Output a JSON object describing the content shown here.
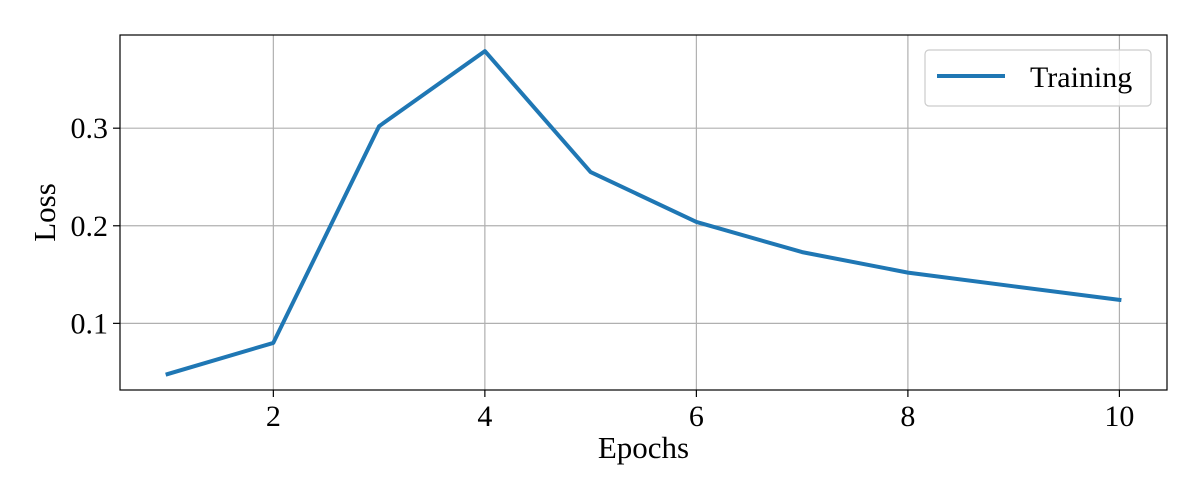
{
  "chart_data": {
    "type": "line",
    "x": [
      1,
      2,
      3,
      4,
      5,
      6,
      7,
      8,
      9,
      10
    ],
    "series": [
      {
        "name": "Training",
        "values": [
          0.048,
          0.08,
          0.302,
          0.379,
          0.255,
          0.204,
          0.173,
          0.152,
          0.138,
          0.124
        ],
        "color": "#1f77b4"
      }
    ],
    "title": "",
    "xlabel": "Epochs",
    "ylabel": "Loss",
    "xlim": [
      0.55,
      10.45
    ],
    "ylim": [
      0.0317,
      0.3955
    ],
    "xticks": [
      2,
      4,
      6,
      8,
      10
    ],
    "xtick_labels": [
      "2",
      "4",
      "6",
      "8",
      "10"
    ],
    "yticks": [
      0.1,
      0.2,
      0.3
    ],
    "ytick_labels": [
      "0.1",
      "0.2",
      "0.3"
    ],
    "grid": true,
    "legend": "top-right"
  }
}
